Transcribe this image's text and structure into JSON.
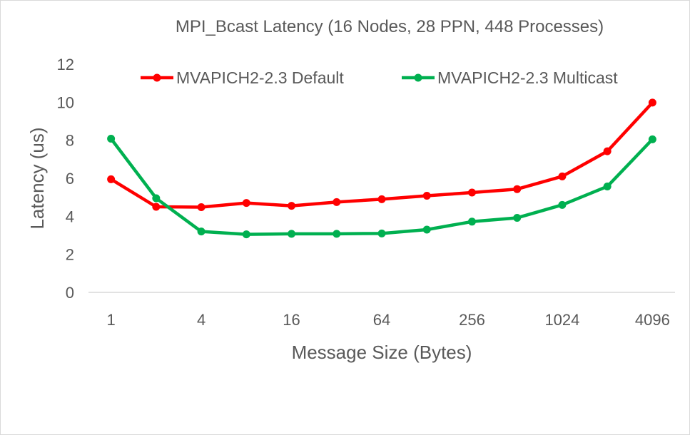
{
  "chart_data": {
    "type": "line",
    "title": "MPI_Bcast Latency (16 Nodes, 28 PPN, 448 Processes)",
    "xlabel": "Message Size (Bytes)",
    "ylabel": "Latency (us)",
    "x": [
      1,
      2,
      4,
      8,
      16,
      32,
      64,
      128,
      256,
      512,
      1024,
      2048,
      4096
    ],
    "x_tick_labels": [
      "1",
      "",
      "4",
      "",
      "16",
      "",
      "64",
      "",
      "256",
      "",
      "1024",
      "",
      "4096"
    ],
    "y_ticks": [
      "0",
      "2",
      "4",
      "6",
      "8",
      "10",
      "12"
    ],
    "ylim": [
      0,
      12
    ],
    "grid": false,
    "legend_position": "top",
    "series": [
      {
        "name": "MVAPICH2-2.3 Default",
        "color": "#ff0000",
        "values": [
          5.95,
          4.5,
          4.48,
          4.7,
          4.55,
          4.75,
          4.9,
          5.08,
          5.25,
          5.43,
          6.1,
          7.42,
          9.98
        ]
      },
      {
        "name": "MVAPICH2-2.3 Multicast",
        "color": "#00b050",
        "values": [
          8.08,
          4.95,
          3.2,
          3.05,
          3.08,
          3.08,
          3.1,
          3.3,
          3.72,
          3.92,
          4.6,
          5.57,
          8.05
        ]
      }
    ]
  }
}
